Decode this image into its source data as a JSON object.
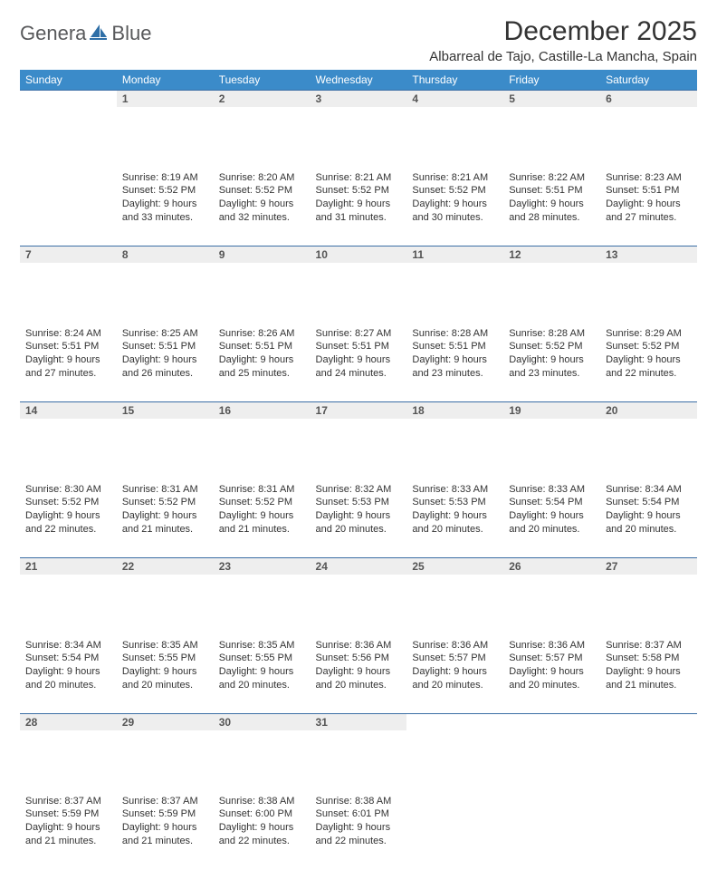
{
  "brand": {
    "text_left": "Genera",
    "text_right": "Blue",
    "sail_color": "#2f6fa7",
    "logo_text_color": "#58595b"
  },
  "header": {
    "month_title": "December 2025",
    "location": "Albarreal de Tajo, Castille-La Mancha, Spain"
  },
  "calendar": {
    "type": "table",
    "header_bg": "#3b8bc9",
    "header_text_color": "#ffffff",
    "row_divider_color": "#3b6ea5",
    "daynum_bg": "#eeeeee",
    "background_color": "#ffffff",
    "body_text_color": "#333333",
    "day_headers": [
      "Sunday",
      "Monday",
      "Tuesday",
      "Wednesday",
      "Thursday",
      "Friday",
      "Saturday"
    ],
    "weeks": [
      [
        null,
        {
          "n": "1",
          "sunrise": "8:19 AM",
          "sunset": "5:52 PM",
          "daylight": "9 hours and 33 minutes."
        },
        {
          "n": "2",
          "sunrise": "8:20 AM",
          "sunset": "5:52 PM",
          "daylight": "9 hours and 32 minutes."
        },
        {
          "n": "3",
          "sunrise": "8:21 AM",
          "sunset": "5:52 PM",
          "daylight": "9 hours and 31 minutes."
        },
        {
          "n": "4",
          "sunrise": "8:21 AM",
          "sunset": "5:52 PM",
          "daylight": "9 hours and 30 minutes."
        },
        {
          "n": "5",
          "sunrise": "8:22 AM",
          "sunset": "5:51 PM",
          "daylight": "9 hours and 28 minutes."
        },
        {
          "n": "6",
          "sunrise": "8:23 AM",
          "sunset": "5:51 PM",
          "daylight": "9 hours and 27 minutes."
        }
      ],
      [
        {
          "n": "7",
          "sunrise": "8:24 AM",
          "sunset": "5:51 PM",
          "daylight": "9 hours and 27 minutes."
        },
        {
          "n": "8",
          "sunrise": "8:25 AM",
          "sunset": "5:51 PM",
          "daylight": "9 hours and 26 minutes."
        },
        {
          "n": "9",
          "sunrise": "8:26 AM",
          "sunset": "5:51 PM",
          "daylight": "9 hours and 25 minutes."
        },
        {
          "n": "10",
          "sunrise": "8:27 AM",
          "sunset": "5:51 PM",
          "daylight": "9 hours and 24 minutes."
        },
        {
          "n": "11",
          "sunrise": "8:28 AM",
          "sunset": "5:51 PM",
          "daylight": "9 hours and 23 minutes."
        },
        {
          "n": "12",
          "sunrise": "8:28 AM",
          "sunset": "5:52 PM",
          "daylight": "9 hours and 23 minutes."
        },
        {
          "n": "13",
          "sunrise": "8:29 AM",
          "sunset": "5:52 PM",
          "daylight": "9 hours and 22 minutes."
        }
      ],
      [
        {
          "n": "14",
          "sunrise": "8:30 AM",
          "sunset": "5:52 PM",
          "daylight": "9 hours and 22 minutes."
        },
        {
          "n": "15",
          "sunrise": "8:31 AM",
          "sunset": "5:52 PM",
          "daylight": "9 hours and 21 minutes."
        },
        {
          "n": "16",
          "sunrise": "8:31 AM",
          "sunset": "5:52 PM",
          "daylight": "9 hours and 21 minutes."
        },
        {
          "n": "17",
          "sunrise": "8:32 AM",
          "sunset": "5:53 PM",
          "daylight": "9 hours and 20 minutes."
        },
        {
          "n": "18",
          "sunrise": "8:33 AM",
          "sunset": "5:53 PM",
          "daylight": "9 hours and 20 minutes."
        },
        {
          "n": "19",
          "sunrise": "8:33 AM",
          "sunset": "5:54 PM",
          "daylight": "9 hours and 20 minutes."
        },
        {
          "n": "20",
          "sunrise": "8:34 AM",
          "sunset": "5:54 PM",
          "daylight": "9 hours and 20 minutes."
        }
      ],
      [
        {
          "n": "21",
          "sunrise": "8:34 AM",
          "sunset": "5:54 PM",
          "daylight": "9 hours and 20 minutes."
        },
        {
          "n": "22",
          "sunrise": "8:35 AM",
          "sunset": "5:55 PM",
          "daylight": "9 hours and 20 minutes."
        },
        {
          "n": "23",
          "sunrise": "8:35 AM",
          "sunset": "5:55 PM",
          "daylight": "9 hours and 20 minutes."
        },
        {
          "n": "24",
          "sunrise": "8:36 AM",
          "sunset": "5:56 PM",
          "daylight": "9 hours and 20 minutes."
        },
        {
          "n": "25",
          "sunrise": "8:36 AM",
          "sunset": "5:57 PM",
          "daylight": "9 hours and 20 minutes."
        },
        {
          "n": "26",
          "sunrise": "8:36 AM",
          "sunset": "5:57 PM",
          "daylight": "9 hours and 20 minutes."
        },
        {
          "n": "27",
          "sunrise": "8:37 AM",
          "sunset": "5:58 PM",
          "daylight": "9 hours and 21 minutes."
        }
      ],
      [
        {
          "n": "28",
          "sunrise": "8:37 AM",
          "sunset": "5:59 PM",
          "daylight": "9 hours and 21 minutes."
        },
        {
          "n": "29",
          "sunrise": "8:37 AM",
          "sunset": "5:59 PM",
          "daylight": "9 hours and 21 minutes."
        },
        {
          "n": "30",
          "sunrise": "8:38 AM",
          "sunset": "6:00 PM",
          "daylight": "9 hours and 22 minutes."
        },
        {
          "n": "31",
          "sunrise": "8:38 AM",
          "sunset": "6:01 PM",
          "daylight": "9 hours and 22 minutes."
        },
        null,
        null,
        null
      ]
    ],
    "labels": {
      "sunrise_prefix": "Sunrise: ",
      "sunset_prefix": "Sunset: ",
      "daylight_prefix": "Daylight: "
    }
  }
}
